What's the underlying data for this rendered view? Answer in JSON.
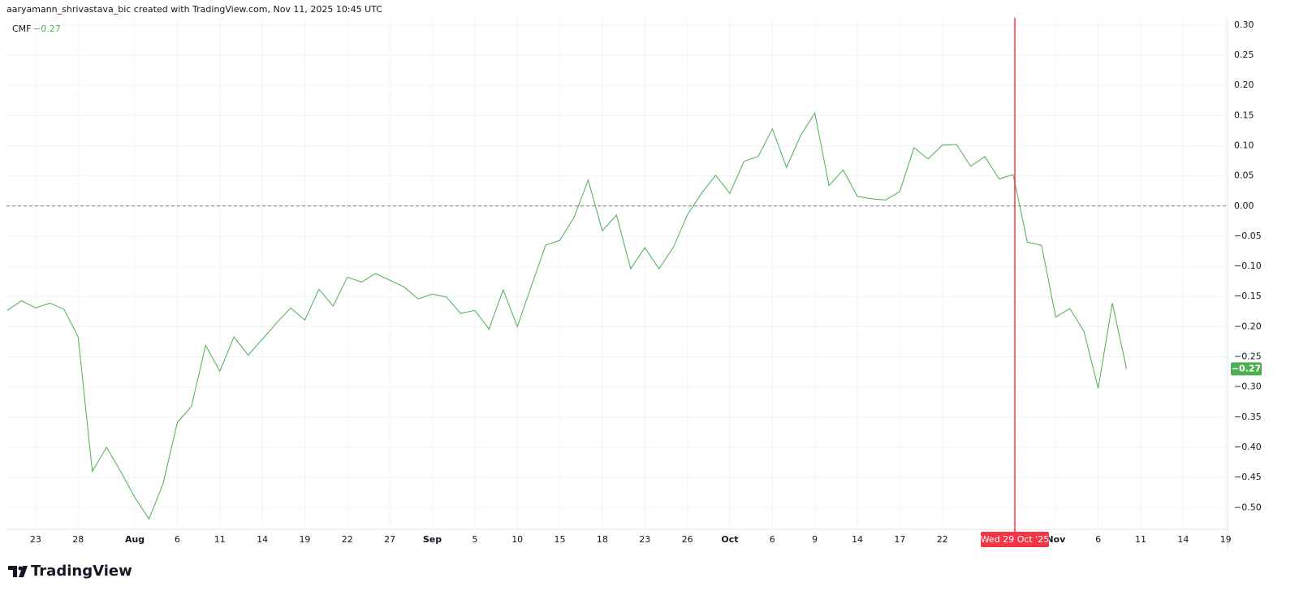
{
  "header": "aaryamann_shrivastava_bic created with TradingView.com, Nov 11, 2025 10:45 UTC",
  "branding": "TradingView",
  "chart_data": {
    "type": "line",
    "categories": [
      null,
      null,
      "23",
      null,
      null,
      "28",
      null,
      null,
      null,
      "Aug",
      null,
      null,
      "6",
      null,
      null,
      "11",
      null,
      null,
      "14",
      null,
      null,
      "19",
      null,
      null,
      "22",
      null,
      null,
      "27",
      null,
      null,
      "Sep",
      null,
      null,
      "5",
      null,
      null,
      "10",
      null,
      null,
      "15",
      null,
      null,
      "18",
      null,
      null,
      "23",
      null,
      null,
      "26",
      null,
      null,
      "Oct",
      null,
      null,
      "6",
      null,
      null,
      "9",
      null,
      null,
      "14",
      null,
      null,
      "17",
      null,
      null,
      "22",
      null,
      null,
      null,
      null,
      null,
      null,
      null,
      "Nov",
      null,
      null,
      "6",
      null,
      null,
      "11",
      null,
      null,
      "14",
      null,
      null,
      "19"
    ],
    "series": [
      {
        "name": "CMF",
        "color": "#4caf50",
        "last_label": "−0.27",
        "values": [
          -0.173,
          -0.157,
          -0.169,
          -0.161,
          -0.171,
          -0.217,
          -0.44,
          -0.4,
          -0.44,
          -0.483,
          -0.519,
          -0.46,
          -0.359,
          -0.332,
          -0.231,
          -0.274,
          -0.217,
          -0.247,
          -0.221,
          -0.194,
          -0.169,
          -0.189,
          -0.138,
          -0.166,
          -0.118,
          -0.126,
          -0.112,
          -0.123,
          -0.134,
          -0.154,
          -0.146,
          -0.151,
          -0.178,
          -0.173,
          -0.204,
          -0.139,
          -0.2,
          -0.132,
          -0.065,
          -0.057,
          -0.019,
          0.043,
          -0.041,
          -0.015,
          -0.104,
          -0.069,
          -0.104,
          -0.069,
          -0.015,
          0.021,
          0.051,
          0.021,
          0.074,
          0.082,
          0.128,
          0.064,
          0.117,
          0.154,
          0.034,
          0.06,
          0.016,
          0.012,
          0.01,
          0.024,
          0.097,
          0.078,
          0.101,
          0.102,
          0.066,
          0.082,
          0.045,
          0.052,
          -0.06,
          -0.065,
          -0.184,
          -0.17,
          -0.208,
          -0.302,
          -0.161,
          -0.27,
          null,
          null,
          null,
          null,
          null,
          null,
          null
        ]
      }
    ],
    "ylim": [
      -0.536,
      0.312
    ],
    "yticks": [
      {
        "value": 0.3,
        "label": "0.30"
      },
      {
        "value": 0.25,
        "label": "0.25"
      },
      {
        "value": 0.2,
        "label": "0.20"
      },
      {
        "value": 0.15,
        "label": "0.15"
      },
      {
        "value": 0.1,
        "label": "0.10"
      },
      {
        "value": 0.05,
        "label": "0.05"
      },
      {
        "value": 0,
        "label": "0.00"
      },
      {
        "value": -0.05,
        "label": "−0.05"
      },
      {
        "value": -0.1,
        "label": "−0.10"
      },
      {
        "value": -0.15,
        "label": "−0.15"
      },
      {
        "value": -0.2,
        "label": "−0.20"
      },
      {
        "value": -0.25,
        "label": "−0.25"
      },
      {
        "value": -0.3,
        "label": "−0.30"
      },
      {
        "value": -0.35,
        "label": "−0.35"
      },
      {
        "value": -0.4,
        "label": "−0.40"
      },
      {
        "value": -0.45,
        "label": "−0.45"
      },
      {
        "value": -0.5,
        "label": "−0.50"
      }
    ],
    "hlines": [
      0
    ],
    "grid": true,
    "crosshair": {
      "label": "Wed 29 Oct '25",
      "color": "#f23645"
    }
  }
}
